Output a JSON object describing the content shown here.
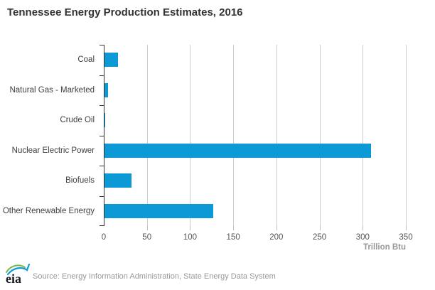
{
  "title": "Tennessee Energy Production Estimates, 2016",
  "footer": {
    "logo_text": "eia",
    "source": "Source: Energy Information Administration, State Energy Data System"
  },
  "colors": {
    "bar": "#0d98d6",
    "gridline": "#cccccc",
    "axis": "#333333",
    "x_tick_mark": "#bbbbbb",
    "tick_label": "#555555",
    "unit_label": "#999999",
    "title_text": "#333333",
    "category_label": "#404040",
    "source_text": "#999999",
    "logo_green": "#7ab648",
    "logo_blue": "#0a9bdb",
    "logo_text_color": "#1a1a26"
  },
  "chart_data": {
    "type": "bar",
    "orientation": "horizontal",
    "title": "Tennessee Energy Production Estimates, 2016",
    "categories": [
      "Coal",
      "Natural Gas - Marketed",
      "Crude Oil",
      "Nuclear Electric Power",
      "Biofuels",
      "Other Renewable Energy"
    ],
    "values": [
      16,
      4,
      1,
      309,
      31,
      126
    ],
    "xlabel": "Trillion Btu",
    "xlim": [
      0,
      350
    ],
    "xticks": [
      0,
      50,
      100,
      150,
      200,
      250,
      300,
      350
    ],
    "grid": true,
    "legend": false
  }
}
